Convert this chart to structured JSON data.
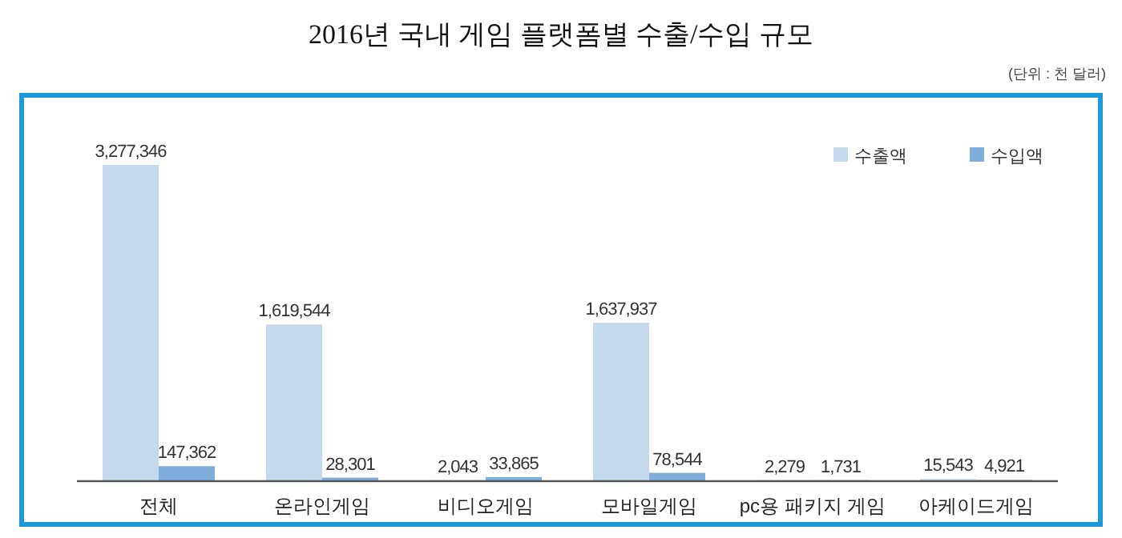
{
  "chart_data": {
    "type": "bar",
    "title": "2016년 국내 게임 플랫폼별 수출/수입 규모",
    "annotations": [
      "(단위 : 천 달러)"
    ],
    "categories": [
      "전체",
      "온라인게임",
      "비디오게임",
      "모바일게임",
      "pc용 패키지 게임",
      "아케이드게임"
    ],
    "series": [
      {
        "name": "수출액",
        "color": "#c5d9ed",
        "values": [
          3277346,
          1619544,
          2043,
          1637937,
          2279,
          15543
        ],
        "value_labels": [
          "3,277,346",
          "1,619,544",
          "2,043",
          "1,637,937",
          "2,279",
          "15,543"
        ]
      },
      {
        "name": "수입액",
        "color": "#7eaedb",
        "values": [
          147362,
          28301,
          33865,
          78544,
          1731,
          4921
        ],
        "value_labels": [
          "147,362",
          "28,301",
          "33,865",
          "78,544",
          "1,731",
          "4,921"
        ]
      }
    ],
    "legend": "top right"
  }
}
